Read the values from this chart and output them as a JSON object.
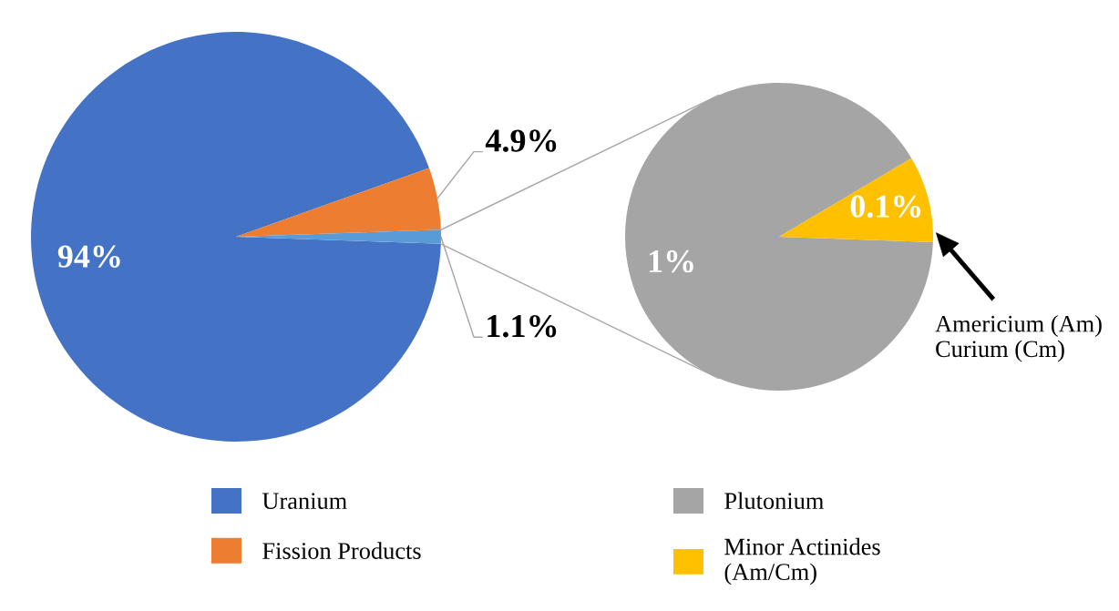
{
  "chart_data": [
    {
      "type": "pie",
      "categories": [
        "Uranium",
        "Fission Products",
        null
      ],
      "values": [
        94,
        4.9,
        1.1
      ],
      "colors": [
        "#4472c4",
        "#ed7d31",
        "#5b9bd5"
      ],
      "value_labels": [
        "94%",
        "4.9%",
        "1.1%"
      ],
      "legend": "bottom"
    },
    {
      "type": "pie",
      "categories": [
        "Plutonium",
        "Minor Actinides\n(Am/Cm)"
      ],
      "values": [
        1,
        0.1
      ],
      "colors": [
        "#a5a5a5",
        "#ffc000"
      ],
      "value_labels": [
        "1%",
        "0.1%"
      ],
      "legend": "bottom",
      "annotations": [
        "Americium (Am)\nCurium (Cm)"
      ]
    }
  ]
}
